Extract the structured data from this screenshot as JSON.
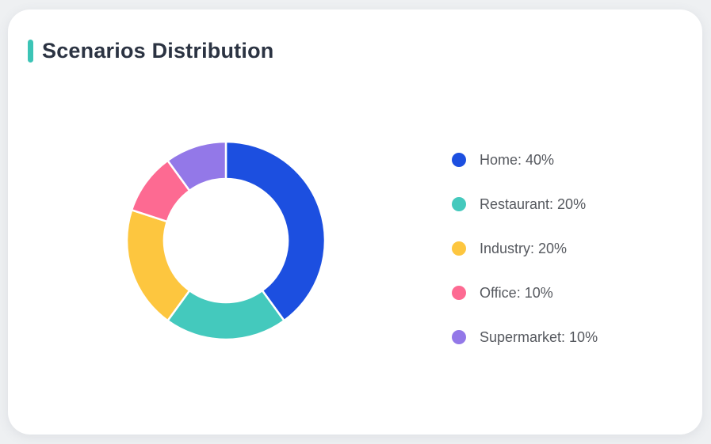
{
  "page": {
    "background_color": "#eef0f2"
  },
  "card": {
    "title": "Scenarios Distribution",
    "accent_color": "#3cc4b6",
    "background_color": "#ffffff"
  },
  "chart_data": {
    "type": "pie",
    "subtype": "donut",
    "title": "Scenarios Distribution",
    "categories": [
      "Home",
      "Restaurant",
      "Industry",
      "Office",
      "Supermarket"
    ],
    "values": [
      40,
      20,
      20,
      10,
      10
    ],
    "unit": "%",
    "colors": [
      "#1c4fe0",
      "#44c9bd",
      "#fdc63f",
      "#fd6a92",
      "#9378e8"
    ],
    "start_angle_deg": 0,
    "clockwise": true,
    "inner_radius_ratio": 0.62,
    "segment_border_color": "#ffffff",
    "legend_position": "right",
    "legend_labels": [
      "Home: 40%",
      "Restaurant: 20%",
      "Industry: 20%",
      "Office: 10%",
      "Supermarket: 10%"
    ]
  }
}
